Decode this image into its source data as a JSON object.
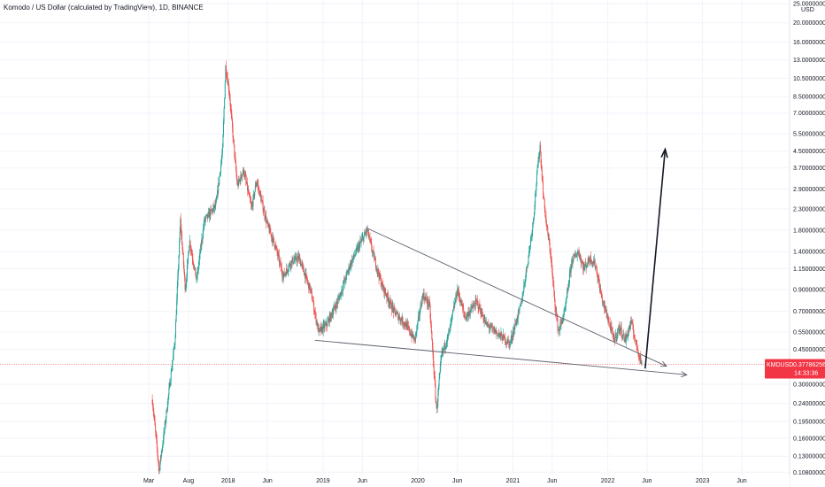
{
  "header": {
    "title": "Komodo / US Dollar (calculated by TradingView), 1D, BINANCE"
  },
  "colors": {
    "up": "#26a69a",
    "down": "#ef5350",
    "price_label_bg": "#f23645",
    "drawing": "#131722",
    "trendline": "#5d606b"
  },
  "chart_data": {
    "type": "candlestick",
    "title": "Komodo / US Dollar (calculated by TradingView), 1D, BINANCE",
    "y_scale": "log",
    "y_unit": "USD",
    "ylim": [
      0.105,
      25.0
    ],
    "y_ticks": [
      "25.00000000",
      "20.00000000",
      "16.00000000",
      "13.00000000",
      "10.50000000",
      "8.50000000",
      "7.00000000",
      "5.50000000",
      "4.50000000",
      "3.70000000",
      "2.90000000",
      "2.30000000",
      "1.80000000",
      "1.40000000",
      "1.15000000",
      "0.90000000",
      "0.70000000",
      "0.55000000",
      "0.45000000",
      "0.30000000",
      "0.24000000",
      "0.19500000",
      "0.16000000",
      "0.13000000",
      "0.10800000"
    ],
    "x_ticks": [
      "Mar",
      "Aug",
      "2018",
      "Jun",
      "2019",
      "Jun",
      "2020",
      "Jun",
      "2021",
      "Jun",
      "2022",
      "Jun",
      "2023",
      "Jun"
    ],
    "current_price": {
      "symbol": "KMDUSD",
      "value": "0.37786256",
      "countdown": "14:33:36"
    },
    "price_path": [
      [
        "2017-03-15",
        0.25
      ],
      [
        "2017-04-10",
        0.11
      ],
      [
        "2017-05-01",
        0.18
      ],
      [
        "2017-06-10",
        0.5
      ],
      [
        "2017-07-01",
        2.0
      ],
      [
        "2017-07-20",
        0.9
      ],
      [
        "2017-08-05",
        1.6
      ],
      [
        "2017-09-01",
        1.0
      ],
      [
        "2017-10-01",
        2.0
      ],
      [
        "2017-11-15",
        2.4
      ],
      [
        "2017-12-10",
        4.5
      ],
      [
        "2017-12-22",
        12.0
      ],
      [
        "2018-01-05",
        9.0
      ],
      [
        "2018-01-20",
        5.2
      ],
      [
        "2018-02-05",
        3.0
      ],
      [
        "2018-03-01",
        3.6
      ],
      [
        "2018-04-01",
        2.3
      ],
      [
        "2018-04-20",
        3.2
      ],
      [
        "2018-06-01",
        1.9
      ],
      [
        "2018-07-01",
        1.5
      ],
      [
        "2018-08-01",
        1.05
      ],
      [
        "2018-09-01",
        1.25
      ],
      [
        "2018-10-01",
        1.3
      ],
      [
        "2018-11-15",
        0.88
      ],
      [
        "2018-12-15",
        0.55
      ],
      [
        "2019-01-15",
        0.6
      ],
      [
        "2019-03-01",
        0.8
      ],
      [
        "2019-04-15",
        1.2
      ],
      [
        "2019-05-20",
        1.5
      ],
      [
        "2019-06-20",
        1.8
      ],
      [
        "2019-07-10",
        1.4
      ],
      [
        "2019-08-15",
        0.95
      ],
      [
        "2019-10-01",
        0.7
      ],
      [
        "2019-11-15",
        0.6
      ],
      [
        "2019-12-20",
        0.5
      ],
      [
        "2020-01-20",
        0.85
      ],
      [
        "2020-02-15",
        0.75
      ],
      [
        "2020-03-13",
        0.22
      ],
      [
        "2020-04-01",
        0.42
      ],
      [
        "2020-05-01",
        0.55
      ],
      [
        "2020-06-01",
        0.9
      ],
      [
        "2020-07-01",
        0.65
      ],
      [
        "2020-08-15",
        0.78
      ],
      [
        "2020-09-20",
        0.6
      ],
      [
        "2020-10-20",
        0.56
      ],
      [
        "2020-11-20",
        0.52
      ],
      [
        "2020-12-20",
        0.48
      ],
      [
        "2021-01-10",
        0.6
      ],
      [
        "2021-02-01",
        0.75
      ],
      [
        "2021-03-01",
        1.3
      ],
      [
        "2021-03-20",
        2.0
      ],
      [
        "2021-04-05",
        3.6
      ],
      [
        "2021-04-15",
        4.8
      ],
      [
        "2021-04-28",
        2.7
      ],
      [
        "2021-05-10",
        1.9
      ],
      [
        "2021-05-25",
        1.4
      ],
      [
        "2021-06-10",
        0.8
      ],
      [
        "2021-06-25",
        0.55
      ],
      [
        "2021-07-20",
        0.7
      ],
      [
        "2021-08-15",
        1.25
      ],
      [
        "2021-09-10",
        1.4
      ],
      [
        "2021-10-01",
        1.15
      ],
      [
        "2021-10-25",
        1.3
      ],
      [
        "2021-11-15",
        1.2
      ],
      [
        "2021-12-10",
        0.8
      ],
      [
        "2022-01-01",
        0.65
      ],
      [
        "2022-01-25",
        0.5
      ],
      [
        "2022-02-15",
        0.58
      ],
      [
        "2022-03-10",
        0.5
      ],
      [
        "2022-04-01",
        0.62
      ],
      [
        "2022-04-20",
        0.48
      ],
      [
        "2022-05-12",
        0.38
      ]
    ],
    "drawings": {
      "upper_trendline": [
        [
          "2019-06-15",
          1.85
        ],
        [
          "2022-08-15",
          0.37
        ]
      ],
      "lower_trendline": [
        [
          "2018-12-01",
          0.5
        ],
        [
          "2022-11-01",
          0.335
        ]
      ],
      "projection_arrow": [
        [
          "2022-05-25",
          0.36
        ],
        [
          "2022-08-10",
          4.6
        ]
      ]
    }
  }
}
